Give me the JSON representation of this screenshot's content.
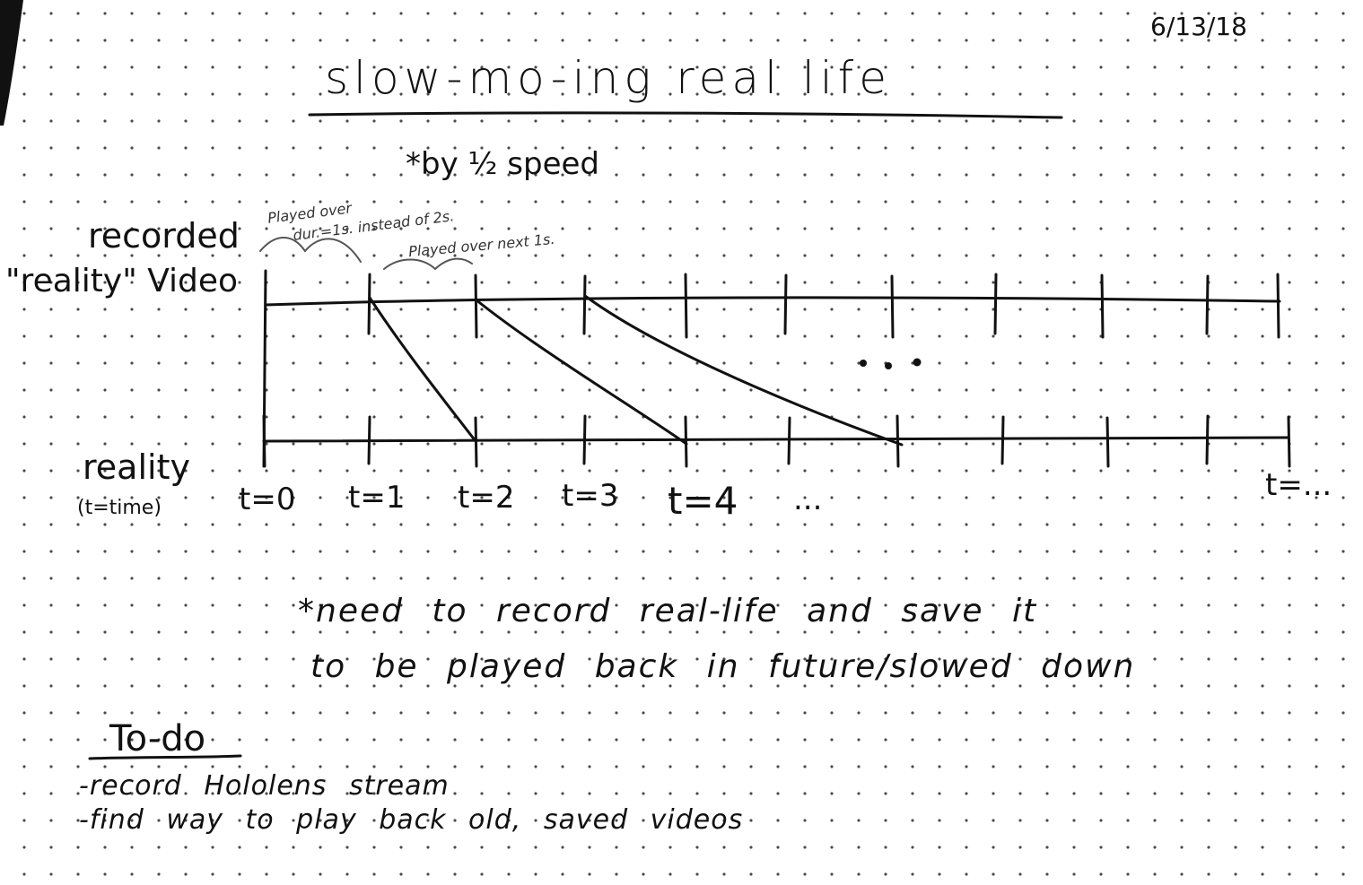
{
  "date": "6/13/18",
  "title": "slow-mo-ing real life",
  "subtitle": "*by ½ speed",
  "labels": {
    "recorded_line1": "recorded",
    "recorded_line2": "\"reality\" Video",
    "reality": "reality",
    "reality_sub": "(t=time)"
  },
  "annotations": {
    "played_over": "Played over",
    "duration": "dur.=1s. instead of 2s.",
    "played_next": "Played over next 1s."
  },
  "time_labels": [
    "t=0",
    "t=1",
    "t=2",
    "t=3",
    "t=4",
    "...",
    "t=..."
  ],
  "ellipsis_between": "• • •",
  "note_line1": "*need to record real-life and save it",
  "note_line2": "to be played back in future/slowed down",
  "todo": {
    "heading": "To-do",
    "items": [
      "-record Hololens stream",
      "-find way to play back old, saved videos"
    ]
  },
  "colors": {
    "ink": "#111111",
    "dot": "#4a4a4a",
    "paper": "#ffffff"
  }
}
